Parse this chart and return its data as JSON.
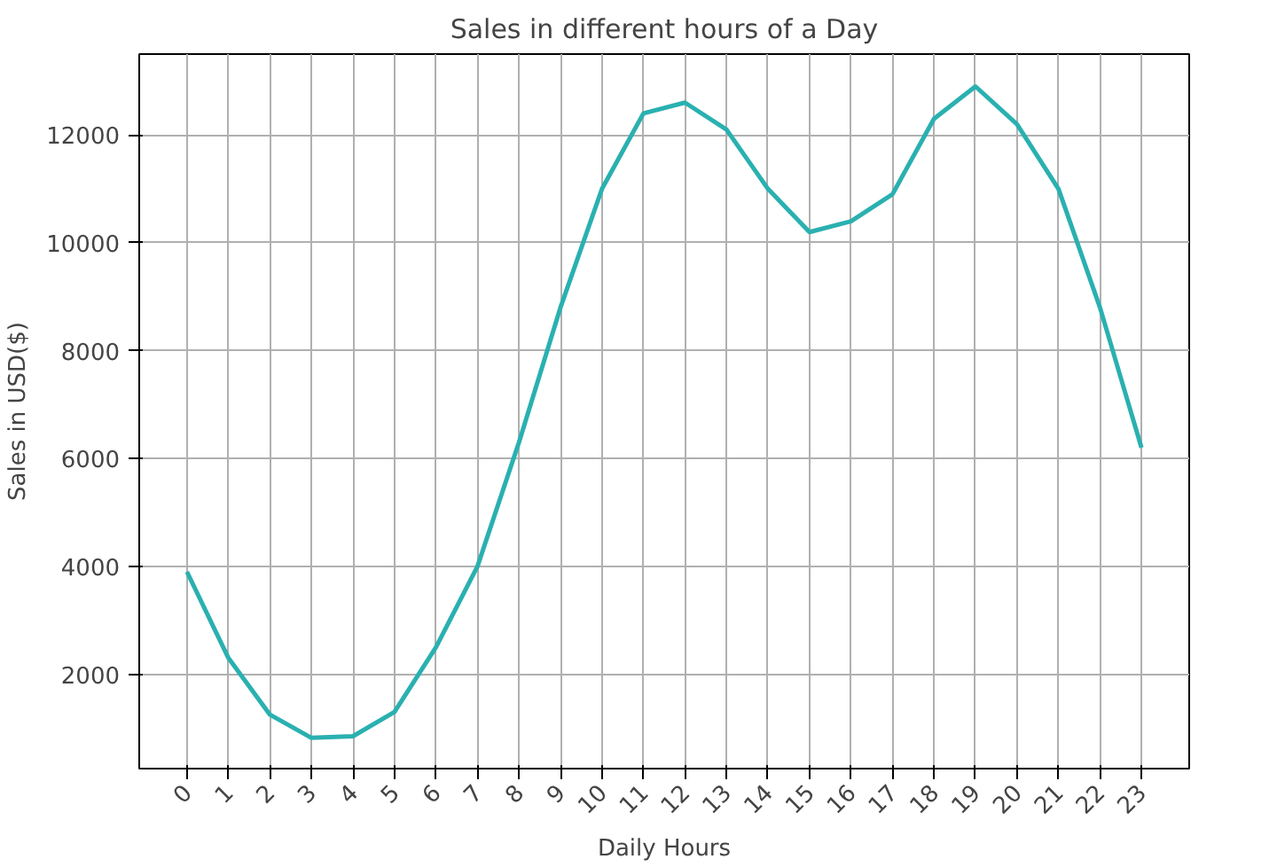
{
  "chart_data": {
    "type": "line",
    "title": "Sales in different hours of a Day",
    "xlabel": "Daily Hours",
    "ylabel": "Sales in USD($)",
    "x": [
      0,
      1,
      2,
      3,
      4,
      5,
      6,
      7,
      8,
      9,
      10,
      11,
      12,
      13,
      14,
      15,
      16,
      17,
      18,
      19,
      20,
      21,
      22,
      23
    ],
    "series": [
      {
        "color": "#2ab0b0",
        "values": [
          3900,
          2300,
          1250,
          820,
          850,
          1300,
          2500,
          4000,
          6300,
          8800,
          11000,
          12400,
          12600,
          12100,
          11000,
          10200,
          10400,
          10900,
          12300,
          12900,
          12200,
          11000,
          8800,
          6200
        ]
      }
    ],
    "xlim": [
      -1.15,
      24.15
    ],
    "ylim": [
      250,
      13500
    ],
    "xticks": [
      0,
      1,
      2,
      3,
      4,
      5,
      6,
      7,
      8,
      9,
      10,
      11,
      12,
      13,
      14,
      15,
      16,
      17,
      18,
      19,
      20,
      21,
      22,
      23
    ],
    "yticks": [
      2000,
      4000,
      6000,
      8000,
      10000,
      12000
    ],
    "grid": true,
    "marker": "none",
    "line_style": "solid"
  }
}
